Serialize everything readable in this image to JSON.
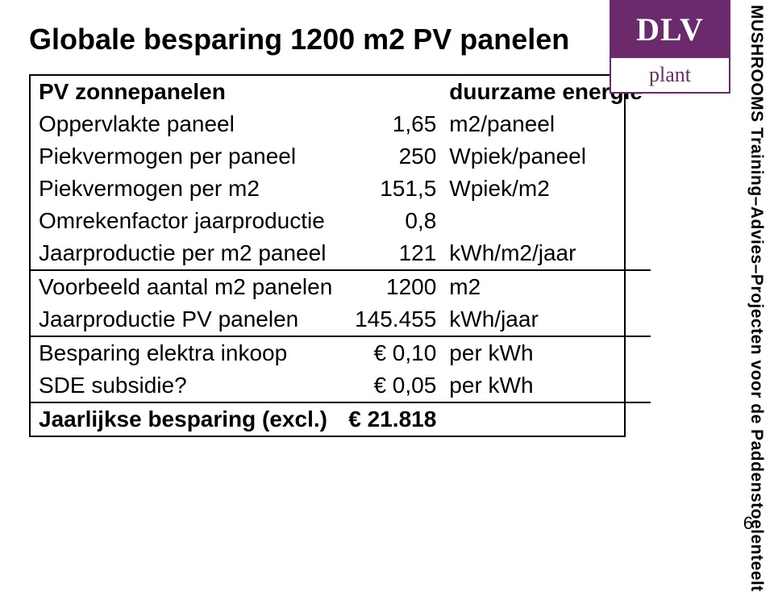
{
  "title": "Globale besparing 1200 m2 PV panelen",
  "table": {
    "rows": [
      {
        "label": "PV zonnepanelen",
        "val": "",
        "unit": "duurzame energie",
        "head": true,
        "hr": false,
        "bold": false
      },
      {
        "label": "Oppervlakte paneel",
        "val": "1,65",
        "unit": "m2/paneel",
        "head": false,
        "hr": false,
        "bold": false
      },
      {
        "label": "Piekvermogen per paneel",
        "val": "250",
        "unit": "Wpiek/paneel",
        "head": false,
        "hr": false,
        "bold": false
      },
      {
        "label": "Piekvermogen per m2",
        "val": "151,5",
        "unit": "Wpiek/m2",
        "head": false,
        "hr": false,
        "bold": false
      },
      {
        "label": "Omrekenfactor jaarproductie",
        "val": "0,8",
        "unit": "",
        "head": false,
        "hr": false,
        "bold": false
      },
      {
        "label": "Jaarproductie per m2 paneel",
        "val": "121",
        "unit": "kWh/m2/jaar",
        "head": false,
        "hr": false,
        "bold": false
      },
      {
        "label": "Voorbeeld aantal m2 panelen",
        "val": "1200",
        "unit": "m2",
        "head": false,
        "hr": true,
        "bold": false
      },
      {
        "label": "Jaarproductie PV panelen",
        "val": "145.455",
        "unit": "kWh/jaar",
        "head": false,
        "hr": false,
        "bold": false
      },
      {
        "label": "Besparing elektra inkoop",
        "val": "€        0,10",
        "unit": "per kWh",
        "head": false,
        "hr": true,
        "bold": false
      },
      {
        "label": "SDE subsidie?",
        "val": "€        0,05",
        "unit": "per kWh",
        "head": false,
        "hr": false,
        "bold": false
      },
      {
        "label": "Jaarlijkse besparing (excl.)",
        "val": "€  21.818",
        "unit": "",
        "head": false,
        "hr": true,
        "bold": true
      }
    ]
  },
  "logo": {
    "top": "DLV",
    "bottom": "plant"
  },
  "sidetext": "MUSHROOMS Training–Advies–Projecten voor de Paddenstoelenteelt",
  "page": "6",
  "colors": {
    "brand": "#6b2a6b",
    "text": "#000000",
    "bg": "#ffffff"
  }
}
